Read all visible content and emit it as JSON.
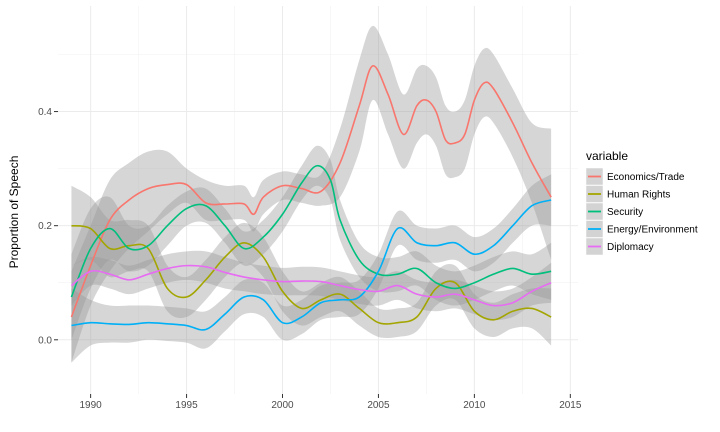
{
  "chart_data": {
    "type": "line",
    "title": "",
    "xlabel": "",
    "ylabel": "Proportion of Speech",
    "xlim": [
      1988.3,
      2015.4
    ],
    "ylim": [
      -0.095,
      0.585
    ],
    "x_ticks": [
      1990,
      1995,
      2000,
      2005,
      2010,
      2015
    ],
    "x_tick_labels": [
      "1990",
      "1995",
      "2000",
      "2005",
      "2010",
      "2015"
    ],
    "y_ticks": [
      0.0,
      0.2,
      0.4
    ],
    "y_tick_labels": [
      "0.0",
      "0.2",
      "0.4"
    ],
    "grid": true,
    "legend": {
      "title": "variable",
      "position": "right"
    },
    "band_color": "#999999",
    "series": [
      {
        "name": "Economics/Trade",
        "color": "#F8766D",
        "x": [
          1989,
          1990,
          1991,
          1992,
          1993,
          1994,
          1995,
          1996,
          1997,
          1998,
          1998.5,
          1999,
          2000,
          2001,
          2002,
          2003,
          2004,
          2004.7,
          2005.5,
          2006.3,
          2007,
          2007.5,
          2008,
          2008.5,
          2009,
          2009.5,
          2010,
          2010.5,
          2011,
          2012,
          2013,
          2014
        ],
        "y": [
          0.04,
          0.13,
          0.21,
          0.245,
          0.265,
          0.272,
          0.272,
          0.24,
          0.238,
          0.238,
          0.22,
          0.25,
          0.27,
          0.265,
          0.26,
          0.31,
          0.41,
          0.48,
          0.43,
          0.36,
          0.41,
          0.42,
          0.4,
          0.35,
          0.345,
          0.36,
          0.42,
          0.45,
          0.44,
          0.38,
          0.31,
          0.25
        ],
        "lower": [
          -0.04,
          0.06,
          0.12,
          0.16,
          0.19,
          0.22,
          0.24,
          0.21,
          0.21,
          0.21,
          0.19,
          0.22,
          0.245,
          0.24,
          0.235,
          0.25,
          0.33,
          0.42,
          0.36,
          0.3,
          0.345,
          0.36,
          0.34,
          0.29,
          0.285,
          0.3,
          0.36,
          0.39,
          0.38,
          0.32,
          0.24,
          0.14
        ],
        "upper": [
          0.12,
          0.2,
          0.28,
          0.31,
          0.33,
          0.33,
          0.3,
          0.28,
          0.27,
          0.27,
          0.25,
          0.28,
          0.295,
          0.29,
          0.29,
          0.37,
          0.49,
          0.55,
          0.5,
          0.43,
          0.475,
          0.48,
          0.46,
          0.41,
          0.4,
          0.42,
          0.48,
          0.51,
          0.5,
          0.44,
          0.38,
          0.37
        ]
      },
      {
        "name": "Human Rights",
        "color": "#A3A500",
        "x": [
          1989,
          1990,
          1991,
          1992,
          1993,
          1994,
          1995,
          1996,
          1997,
          1998,
          1999,
          2000,
          2001,
          2002,
          2003,
          2004,
          2005,
          2006,
          2007,
          2008,
          2009,
          2010,
          2011,
          2012,
          2013,
          2014
        ],
        "y": [
          0.2,
          0.195,
          0.16,
          0.165,
          0.16,
          0.09,
          0.075,
          0.105,
          0.145,
          0.17,
          0.145,
          0.085,
          0.055,
          0.07,
          0.08,
          0.055,
          0.03,
          0.03,
          0.04,
          0.09,
          0.1,
          0.05,
          0.035,
          0.05,
          0.055,
          0.04
        ],
        "lower": [
          0.13,
          0.14,
          0.11,
          0.12,
          0.12,
          0.05,
          0.04,
          0.07,
          0.11,
          0.135,
          0.11,
          0.05,
          0.025,
          0.04,
          0.05,
          0.025,
          0.005,
          0.005,
          0.015,
          0.06,
          0.07,
          0.02,
          0.005,
          0.02,
          0.02,
          -0.01
        ],
        "upper": [
          0.27,
          0.25,
          0.21,
          0.21,
          0.2,
          0.13,
          0.11,
          0.14,
          0.18,
          0.205,
          0.18,
          0.12,
          0.085,
          0.1,
          0.11,
          0.085,
          0.055,
          0.055,
          0.065,
          0.12,
          0.13,
          0.08,
          0.065,
          0.08,
          0.09,
          0.09
        ]
      },
      {
        "name": "Security",
        "color": "#00BF7D",
        "x": [
          1989,
          1990,
          1991,
          1992,
          1993,
          1994,
          1995,
          1996,
          1997,
          1998,
          1999,
          2000,
          2001,
          2001.8,
          2002.5,
          2003,
          2004,
          2005,
          2006,
          2007,
          2008,
          2009,
          2010,
          2011,
          2012,
          2013,
          2014
        ],
        "y": [
          0.075,
          0.16,
          0.195,
          0.16,
          0.165,
          0.2,
          0.23,
          0.235,
          0.2,
          0.16,
          0.18,
          0.22,
          0.275,
          0.305,
          0.28,
          0.21,
          0.14,
          0.115,
          0.115,
          0.125,
          0.1,
          0.09,
          0.1,
          0.115,
          0.125,
          0.115,
          0.12
        ],
        "lower": [
          0.0,
          0.09,
          0.14,
          0.12,
          0.13,
          0.165,
          0.2,
          0.205,
          0.17,
          0.13,
          0.15,
          0.19,
          0.245,
          0.27,
          0.245,
          0.175,
          0.11,
          0.085,
          0.085,
          0.095,
          0.07,
          0.06,
          0.07,
          0.085,
          0.095,
          0.08,
          0.07
        ],
        "upper": [
          0.15,
          0.23,
          0.25,
          0.2,
          0.2,
          0.235,
          0.26,
          0.265,
          0.23,
          0.19,
          0.21,
          0.25,
          0.305,
          0.34,
          0.315,
          0.245,
          0.17,
          0.145,
          0.145,
          0.155,
          0.13,
          0.12,
          0.13,
          0.145,
          0.155,
          0.15,
          0.17
        ]
      },
      {
        "name": "Energy/Environment",
        "color": "#00B0F6",
        "x": [
          1989,
          1990,
          1991,
          1992,
          1993,
          1994,
          1995,
          1996,
          1997,
          1998,
          1999,
          2000,
          2001,
          2002,
          2003,
          2004,
          2005,
          2006,
          2007,
          2008,
          2009,
          2010,
          2011,
          2012,
          2013,
          2014
        ],
        "y": [
          0.025,
          0.03,
          0.028,
          0.027,
          0.03,
          0.028,
          0.025,
          0.018,
          0.045,
          0.075,
          0.07,
          0.03,
          0.04,
          0.065,
          0.07,
          0.075,
          0.12,
          0.195,
          0.17,
          0.165,
          0.17,
          0.15,
          0.165,
          0.2,
          0.235,
          0.245
        ],
        "lower": [
          -0.04,
          -0.01,
          -0.005,
          -0.005,
          0.0,
          -0.002,
          -0.005,
          -0.015,
          0.015,
          0.045,
          0.04,
          0.0,
          0.01,
          0.035,
          0.04,
          0.045,
          0.09,
          0.165,
          0.14,
          0.135,
          0.14,
          0.12,
          0.135,
          0.17,
          0.2,
          0.2
        ],
        "upper": [
          0.09,
          0.07,
          0.06,
          0.06,
          0.06,
          0.058,
          0.055,
          0.05,
          0.075,
          0.105,
          0.1,
          0.06,
          0.07,
          0.095,
          0.1,
          0.105,
          0.15,
          0.225,
          0.2,
          0.195,
          0.2,
          0.18,
          0.195,
          0.23,
          0.27,
          0.29
        ]
      },
      {
        "name": "Diplomacy",
        "color": "#E76BF3",
        "x": [
          1989,
          1990,
          1991,
          1992,
          1993,
          1994,
          1995,
          1996,
          1997,
          1998,
          1999,
          2000,
          2001,
          2002,
          2003,
          2004,
          2005,
          2006,
          2007,
          2008,
          2009,
          2010,
          2011,
          2012,
          2013,
          2014
        ],
        "y": [
          0.095,
          0.12,
          0.115,
          0.105,
          0.115,
          0.125,
          0.13,
          0.128,
          0.118,
          0.11,
          0.105,
          0.102,
          0.103,
          0.102,
          0.095,
          0.088,
          0.085,
          0.095,
          0.08,
          0.075,
          0.08,
          0.07,
          0.06,
          0.065,
          0.085,
          0.1
        ],
        "lower": [
          0.06,
          0.095,
          0.09,
          0.08,
          0.09,
          0.1,
          0.105,
          0.1,
          0.09,
          0.085,
          0.08,
          0.078,
          0.078,
          0.077,
          0.07,
          0.063,
          0.06,
          0.07,
          0.055,
          0.05,
          0.055,
          0.045,
          0.035,
          0.04,
          0.06,
          0.065
        ],
        "upper": [
          0.13,
          0.145,
          0.14,
          0.13,
          0.14,
          0.15,
          0.155,
          0.155,
          0.145,
          0.135,
          0.13,
          0.126,
          0.128,
          0.127,
          0.12,
          0.113,
          0.11,
          0.12,
          0.105,
          0.1,
          0.105,
          0.095,
          0.085,
          0.09,
          0.11,
          0.135
        ]
      }
    ]
  }
}
